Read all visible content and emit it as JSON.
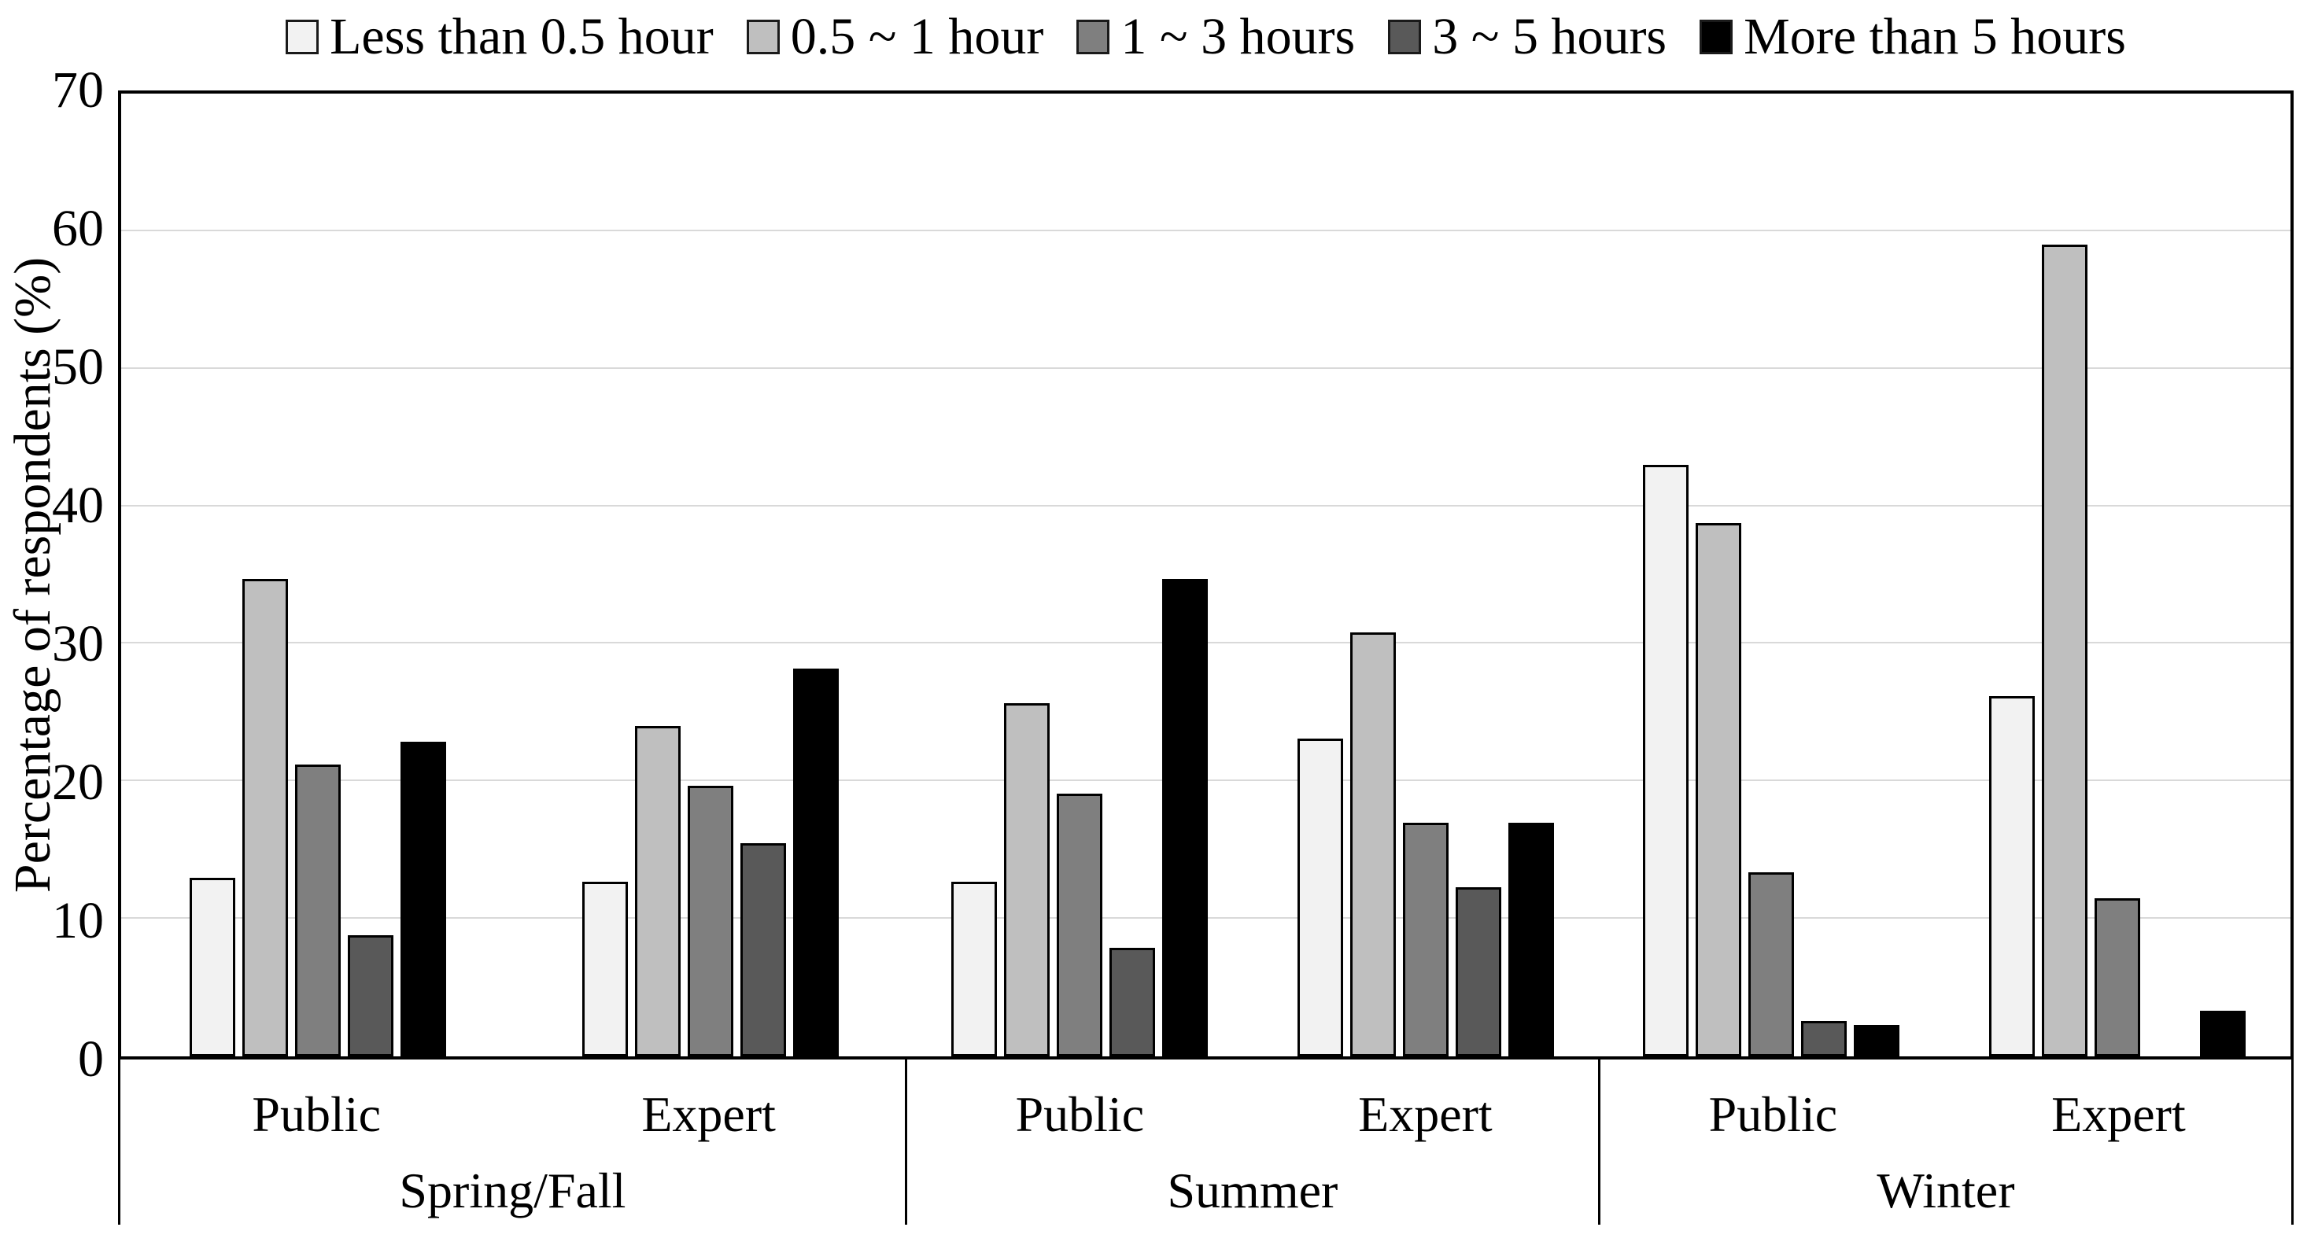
{
  "chart_data": {
    "type": "bar",
    "title": "",
    "ylabel": "Percentage of respondents (%)",
    "ylim": [
      0,
      70
    ],
    "yticks": [
      0,
      10,
      20,
      30,
      40,
      50,
      60,
      70
    ],
    "grid": true,
    "legend_position": "top",
    "categories": [
      {
        "season": "Spring/Fall",
        "label": "Public"
      },
      {
        "season": "Spring/Fall",
        "label": "Expert"
      },
      {
        "season": "Summer",
        "label": "Public"
      },
      {
        "season": "Summer",
        "label": "Expert"
      },
      {
        "season": "Winter",
        "label": "Public"
      },
      {
        "season": "Winter",
        "label": "Expert"
      }
    ],
    "seasons": [
      {
        "label": "Spring/Fall",
        "width_pct": 36.2,
        "sublabels": [
          "Public",
          "Expert"
        ]
      },
      {
        "label": "Summer",
        "width_pct": 31.9,
        "sublabels": [
          "Public",
          "Expert"
        ]
      },
      {
        "label": "Winter",
        "width_pct": 31.9,
        "sublabels": [
          "Public",
          "Expert"
        ]
      }
    ],
    "series": [
      {
        "name": "Less than 0.5 hour",
        "color": "#f2f2f2",
        "values": [
          13.0,
          12.7,
          12.7,
          23.1,
          43.0,
          26.2
        ]
      },
      {
        "name": "0.5 ~ 1 hour",
        "color": "#bfbfbf",
        "values": [
          34.7,
          24.0,
          25.7,
          30.8,
          38.8,
          59.0
        ]
      },
      {
        "name": "1 ~ 3 hours",
        "color": "#7f7f7f",
        "values": [
          21.2,
          19.7,
          19.1,
          17.0,
          13.4,
          11.5
        ]
      },
      {
        "name": "3 ~ 5 hours",
        "color": "#595959",
        "values": [
          8.8,
          15.5,
          7.9,
          12.3,
          2.6,
          0
        ]
      },
      {
        "name": "More than 5 hours",
        "color": "#000000",
        "values": [
          22.9,
          28.2,
          34.7,
          17.0,
          2.3,
          3.3
        ]
      }
    ]
  },
  "style": {
    "bar_outline_color": "#000000",
    "gridline_color": "#d9d9d9",
    "plot_border_color": "#000000"
  }
}
